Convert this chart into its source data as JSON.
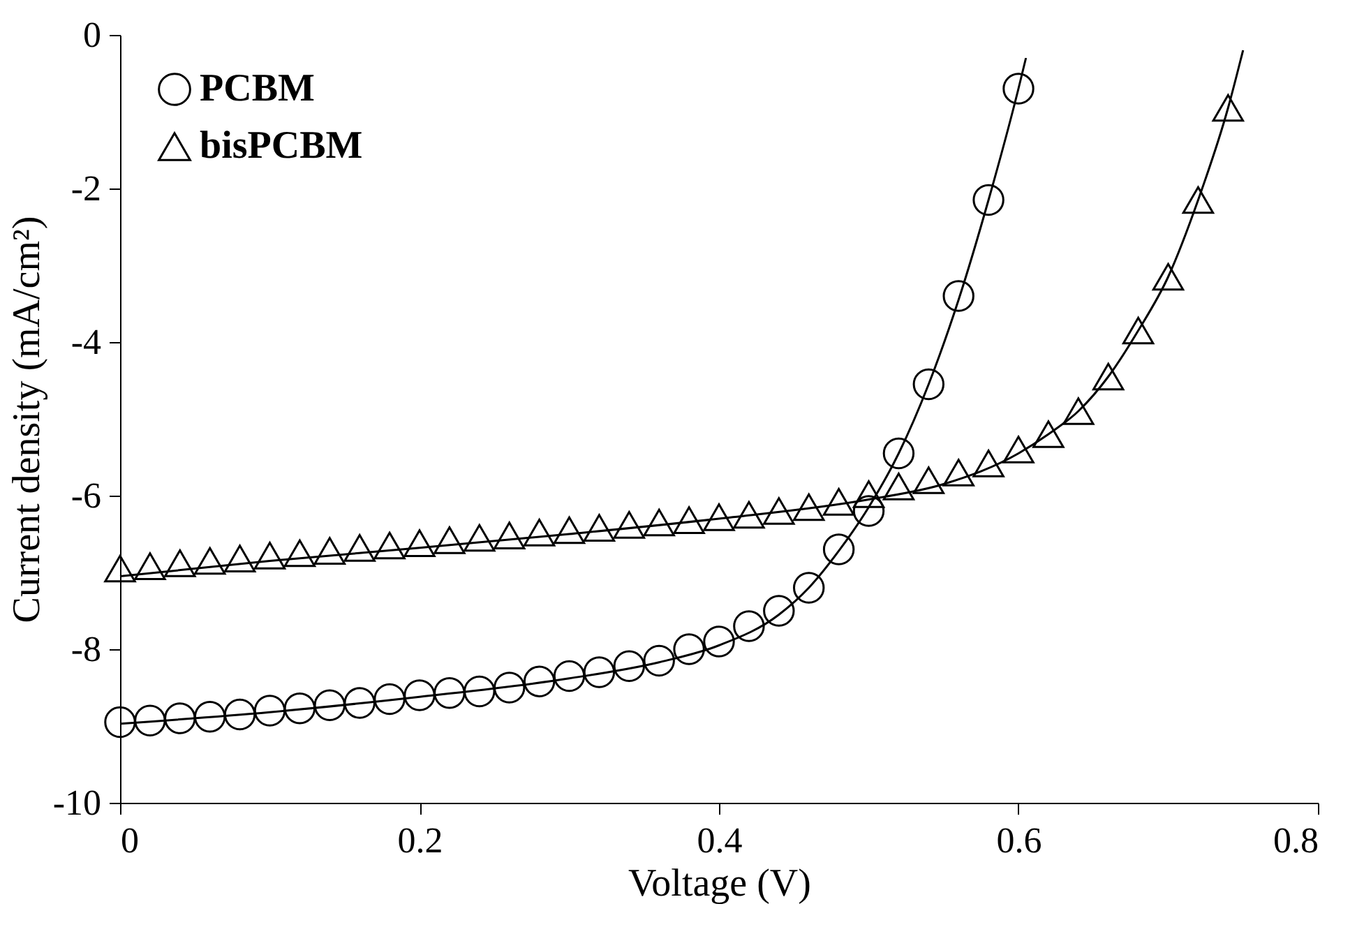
{
  "chart_data": {
    "type": "scatter",
    "xlabel": "Voltage (V)",
    "ylabel": "Current density (mA/cm²)",
    "xlim": [
      0,
      0.8
    ],
    "xticks": [
      0,
      0.2,
      0.4,
      0.6,
      0.8
    ],
    "ylim": [
      -10,
      0
    ],
    "yticks": [
      -10,
      -8,
      -6,
      -4,
      -2,
      0
    ],
    "grid": false,
    "legend": "top left",
    "series": [
      {
        "name": "PCBM",
        "marker": "circle",
        "color": "#000000",
        "x": [
          0,
          0.02,
          0.04,
          0.06,
          0.08,
          0.1,
          0.12,
          0.14,
          0.16,
          0.18,
          0.2,
          0.22,
          0.24,
          0.26,
          0.28,
          0.3,
          0.32,
          0.34,
          0.36,
          0.38,
          0.4,
          0.42,
          0.44,
          0.46,
          0.48,
          0.5,
          0.52,
          0.54,
          0.56,
          0.58,
          0.6
        ],
        "values": [
          -8.95,
          -8.93,
          -8.9,
          -8.88,
          -8.85,
          -8.8,
          -8.77,
          -8.73,
          -8.7,
          -8.65,
          -8.6,
          -8.57,
          -8.55,
          -8.5,
          -8.42,
          -8.35,
          -8.3,
          -8.22,
          -8.15,
          -8.0,
          -7.9,
          -7.7,
          -7.5,
          -7.2,
          -6.7,
          -6.2,
          -5.45,
          -4.55,
          -3.4,
          -2.15,
          -0.7
        ]
      },
      {
        "name": "bisPCBM",
        "marker": "triangle",
        "color": "#000000",
        "x": [
          0,
          0.02,
          0.04,
          0.06,
          0.08,
          0.1,
          0.12,
          0.14,
          0.16,
          0.18,
          0.2,
          0.22,
          0.24,
          0.26,
          0.28,
          0.3,
          0.32,
          0.34,
          0.36,
          0.38,
          0.4,
          0.42,
          0.44,
          0.46,
          0.48,
          0.5,
          0.52,
          0.54,
          0.56,
          0.58,
          0.6,
          0.62,
          0.64,
          0.66,
          0.68,
          0.7,
          0.72,
          0.74
        ],
        "values": [
          -6.95,
          -6.92,
          -6.88,
          -6.85,
          -6.82,
          -6.78,
          -6.75,
          -6.72,
          -6.68,
          -6.65,
          -6.62,
          -6.58,
          -6.55,
          -6.52,
          -6.48,
          -6.45,
          -6.42,
          -6.38,
          -6.35,
          -6.32,
          -6.28,
          -6.25,
          -6.2,
          -6.15,
          -6.08,
          -5.98,
          -5.88,
          -5.8,
          -5.7,
          -5.58,
          -5.4,
          -5.2,
          -4.9,
          -4.45,
          -3.85,
          -3.15,
          -2.15,
          -0.95
        ]
      },
      {
        "type": "line",
        "color": "#000000",
        "line_style": "solid",
        "x": [
          0,
          0.1,
          0.2,
          0.3,
          0.36,
          0.4,
          0.44,
          0.46,
          0.48,
          0.5,
          0.52,
          0.54,
          0.56,
          0.58,
          0.6,
          0.605
        ],
        "values": [
          -8.97,
          -8.82,
          -8.62,
          -8.38,
          -8.17,
          -7.95,
          -7.55,
          -7.2,
          -6.72,
          -6.15,
          -5.45,
          -4.55,
          -3.45,
          -2.15,
          -0.7,
          -0.3
        ]
      },
      {
        "type": "line",
        "color": "#000000",
        "line_style": "solid",
        "x": [
          0,
          0.1,
          0.2,
          0.3,
          0.4,
          0.5,
          0.55,
          0.6,
          0.62,
          0.64,
          0.66,
          0.68,
          0.7,
          0.72,
          0.74,
          0.75
        ],
        "values": [
          -7.05,
          -6.85,
          -6.68,
          -6.5,
          -6.3,
          -6.05,
          -5.85,
          -5.45,
          -5.2,
          -4.9,
          -4.45,
          -3.85,
          -3.15,
          -2.15,
          -0.95,
          -0.2
        ]
      }
    ]
  }
}
